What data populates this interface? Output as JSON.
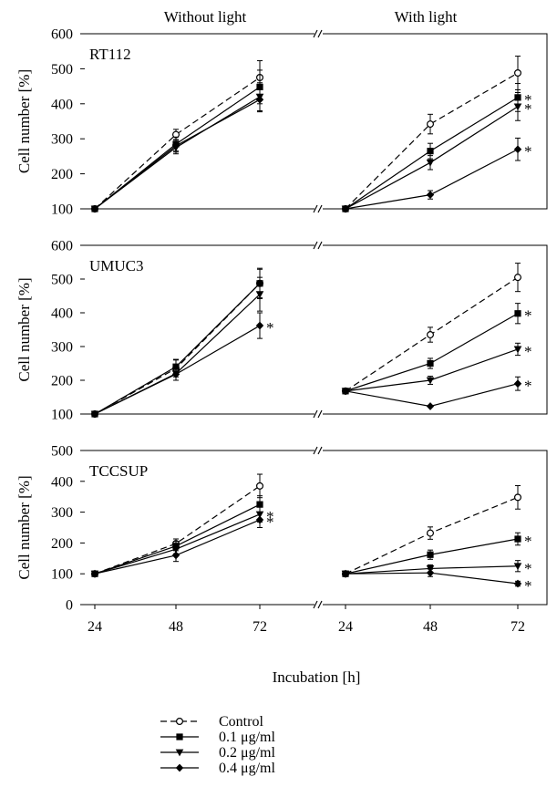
{
  "column_titles": [
    "Without light",
    "With light"
  ],
  "xlabel": "Incubation [h]",
  "ylabel": "Cell number [%]",
  "legend": [
    {
      "label": "Control",
      "series": "control"
    },
    {
      "label": "0.1 μg/ml",
      "series": "c01"
    },
    {
      "label": "0.2 μg/ml",
      "series": "c02"
    },
    {
      "label": "0.4 μg/ml",
      "series": "c04"
    }
  ],
  "significance_marker": "*",
  "styles": {
    "control": {
      "dash": true,
      "marker": "circle-open"
    },
    "c01": {
      "dash": false,
      "marker": "square"
    },
    "c02": {
      "dash": false,
      "marker": "triangle-down"
    },
    "c04": {
      "dash": false,
      "marker": "diamond"
    }
  },
  "chart_data": [
    {
      "type": "line",
      "panel": "RT112",
      "condition": "Without light",
      "x": [
        24,
        48,
        72
      ],
      "ylim": [
        100,
        600
      ],
      "yticks": [
        100,
        200,
        300,
        400,
        500,
        600
      ],
      "series": [
        {
          "key": "control",
          "values": [
            100,
            312,
            475
          ],
          "errors": [
            0,
            15,
            48
          ],
          "sig": [
            false,
            false,
            false
          ]
        },
        {
          "key": "c01",
          "values": [
            100,
            285,
            448
          ],
          "errors": [
            0,
            20,
            48
          ],
          "sig": [
            false,
            false,
            false
          ]
        },
        {
          "key": "c02",
          "values": [
            100,
            275,
            420
          ],
          "errors": [
            0,
            18,
            40
          ],
          "sig": [
            false,
            false,
            false
          ]
        },
        {
          "key": "c04",
          "values": [
            100,
            280,
            412
          ],
          "errors": [
            0,
            18,
            35
          ],
          "sig": [
            false,
            false,
            false
          ]
        }
      ]
    },
    {
      "type": "line",
      "panel": "RT112",
      "condition": "With light",
      "x": [
        24,
        48,
        72
      ],
      "ylim": [
        100,
        600
      ],
      "yticks": [
        100,
        200,
        300,
        400,
        500,
        600
      ],
      "series": [
        {
          "key": "control",
          "values": [
            100,
            342,
            488
          ],
          "errors": [
            0,
            28,
            48
          ],
          "sig": [
            false,
            false,
            false
          ]
        },
        {
          "key": "c01",
          "values": [
            100,
            265,
            418
          ],
          "errors": [
            0,
            22,
            40
          ],
          "sig": [
            false,
            false,
            true
          ]
        },
        {
          "key": "c02",
          "values": [
            100,
            232,
            392
          ],
          "errors": [
            0,
            20,
            40
          ],
          "sig": [
            false,
            false,
            true
          ]
        },
        {
          "key": "c04",
          "values": [
            100,
            140,
            270
          ],
          "errors": [
            0,
            12,
            32
          ],
          "sig": [
            false,
            false,
            true
          ]
        }
      ]
    },
    {
      "type": "line",
      "panel": "UMUC3",
      "condition": "Without light",
      "x": [
        24,
        48,
        72
      ],
      "ylim": [
        100,
        600
      ],
      "yticks": [
        100,
        200,
        300,
        400,
        500,
        600
      ],
      "series": [
        {
          "key": "control",
          "values": [
            100,
            235,
            487
          ],
          "errors": [
            0,
            25,
            45
          ],
          "sig": [
            false,
            false,
            false
          ]
        },
        {
          "key": "c01",
          "values": [
            100,
            240,
            487
          ],
          "errors": [
            0,
            22,
            42
          ],
          "sig": [
            false,
            false,
            false
          ]
        },
        {
          "key": "c02",
          "values": [
            100,
            220,
            455
          ],
          "errors": [
            0,
            20,
            50
          ],
          "sig": [
            false,
            false,
            false
          ]
        },
        {
          "key": "c04",
          "values": [
            100,
            218,
            362
          ],
          "errors": [
            0,
            18,
            38
          ],
          "sig": [
            false,
            false,
            true
          ]
        }
      ]
    },
    {
      "type": "line",
      "panel": "UMUC3",
      "condition": "With light",
      "x": [
        24,
        48,
        72
      ],
      "ylim": [
        100,
        600
      ],
      "yticks": [
        100,
        200,
        300,
        400,
        500,
        600
      ],
      "series": [
        {
          "key": "control",
          "values": [
            168,
            335,
            505
          ],
          "errors": [
            0,
            22,
            42
          ],
          "sig": [
            false,
            false,
            false
          ]
        },
        {
          "key": "c01",
          "values": [
            168,
            250,
            398
          ],
          "errors": [
            0,
            15,
            30
          ],
          "sig": [
            false,
            false,
            true
          ]
        },
        {
          "key": "c02",
          "values": [
            168,
            200,
            292
          ],
          "errors": [
            0,
            12,
            18
          ],
          "sig": [
            false,
            false,
            true
          ]
        },
        {
          "key": "c04",
          "values": [
            168,
            123,
            190
          ],
          "errors": [
            0,
            0,
            20
          ],
          "sig": [
            false,
            false,
            true
          ]
        }
      ]
    },
    {
      "type": "line",
      "panel": "TCCSUP",
      "condition": "Without light",
      "x": [
        24,
        48,
        72
      ],
      "ylim": [
        0,
        500
      ],
      "yticks": [
        0,
        100,
        200,
        300,
        400,
        500
      ],
      "series": [
        {
          "key": "control",
          "values": [
            100,
            198,
            385
          ],
          "errors": [
            0,
            15,
            38
          ],
          "sig": [
            false,
            false,
            false
          ]
        },
        {
          "key": "c01",
          "values": [
            100,
            190,
            325
          ],
          "errors": [
            0,
            15,
            28
          ],
          "sig": [
            false,
            false,
            false
          ]
        },
        {
          "key": "c02",
          "values": [
            100,
            180,
            293
          ],
          "errors": [
            0,
            15,
            25
          ],
          "sig": [
            false,
            false,
            true
          ]
        },
        {
          "key": "c04",
          "values": [
            100,
            160,
            275
          ],
          "errors": [
            0,
            20,
            25
          ],
          "sig": [
            false,
            false,
            true
          ]
        }
      ]
    },
    {
      "type": "line",
      "panel": "TCCSUP",
      "condition": "With light",
      "x": [
        24,
        48,
        72
      ],
      "ylim": [
        0,
        500
      ],
      "yticks": [
        0,
        100,
        200,
        300,
        400,
        500
      ],
      "series": [
        {
          "key": "control",
          "values": [
            100,
            232,
            348
          ],
          "errors": [
            0,
            20,
            38
          ],
          "sig": [
            false,
            false,
            false
          ]
        },
        {
          "key": "c01",
          "values": [
            100,
            162,
            213
          ],
          "errors": [
            0,
            15,
            20
          ],
          "sig": [
            false,
            false,
            true
          ]
        },
        {
          "key": "c02",
          "values": [
            100,
            117,
            125
          ],
          "errors": [
            0,
            12,
            18
          ],
          "sig": [
            false,
            false,
            true
          ]
        },
        {
          "key": "c04",
          "values": [
            100,
            103,
            68
          ],
          "errors": [
            0,
            12,
            8
          ],
          "sig": [
            false,
            false,
            true
          ]
        }
      ]
    }
  ]
}
